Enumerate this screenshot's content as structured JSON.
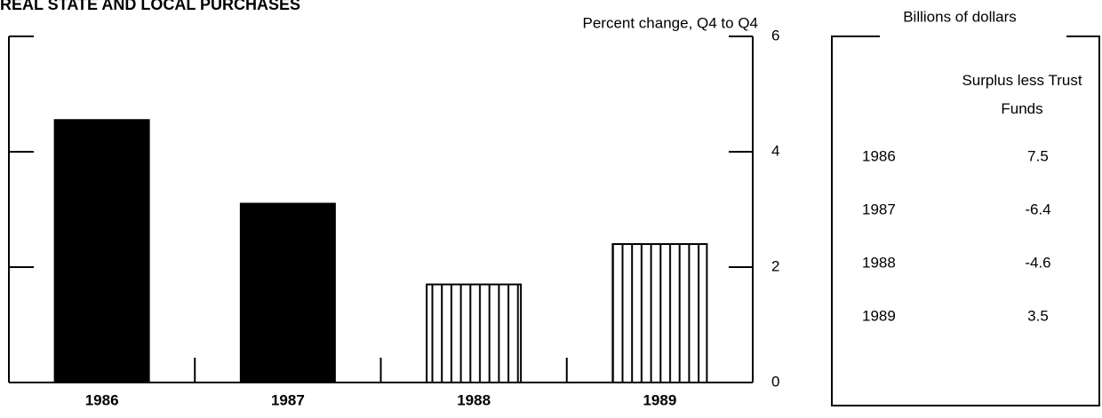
{
  "chart_data": {
    "type": "bar",
    "title": "REAL STATE AND LOCAL PURCHASES",
    "y_label": "Percent change, Q4 to Q4",
    "categories": [
      "1986",
      "1987",
      "1988",
      "1989"
    ],
    "values": [
      4.55,
      3.1,
      1.7,
      2.4
    ],
    "bar_fill": [
      "solid",
      "solid",
      "hatched",
      "hatched"
    ],
    "color": "#000000",
    "ylim": [
      0,
      6
    ],
    "yticks": [
      0,
      2,
      4,
      6
    ]
  },
  "table": {
    "unit": "Billions of dollars",
    "header": "Surplus less Trust Funds",
    "rows": [
      [
        "1986",
        "7.5"
      ],
      [
        "1987",
        "-6.4"
      ],
      [
        "1988",
        "-4.6"
      ],
      [
        "1989",
        "3.5"
      ]
    ]
  }
}
